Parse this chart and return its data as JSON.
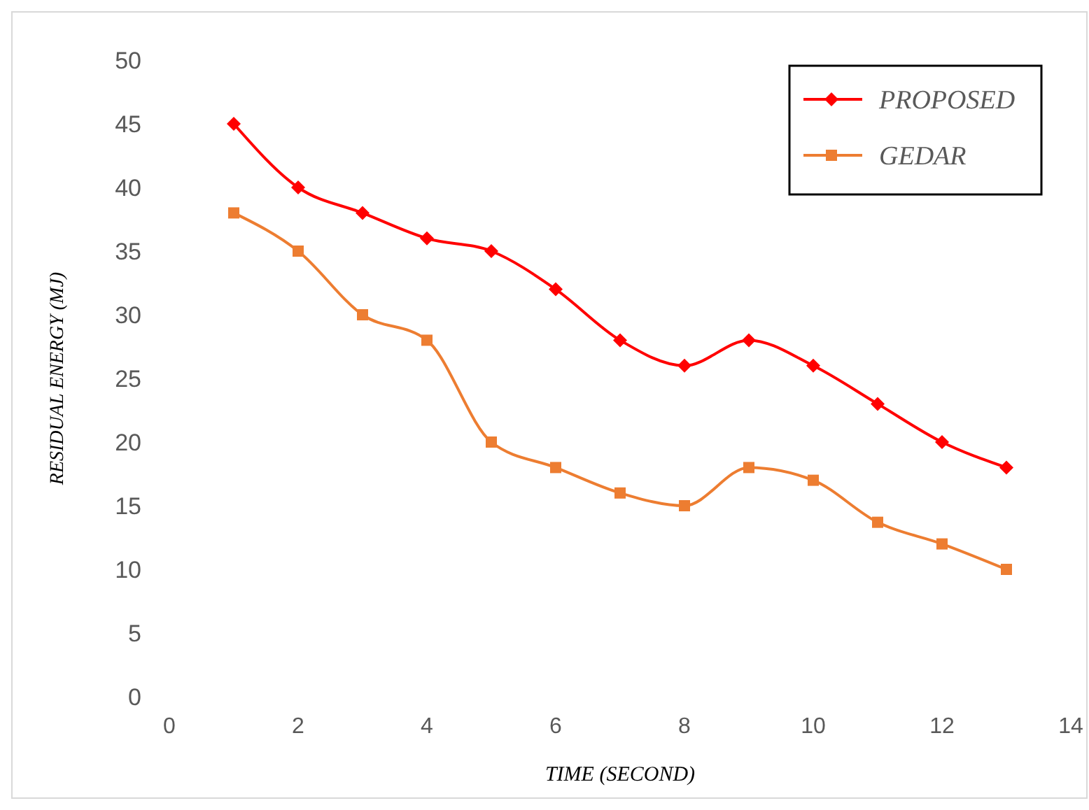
{
  "chart_data": {
    "type": "line",
    "xlabel": "TIME (SECOND)",
    "ylabel": "RESIDUAL ENERGY (MJ)",
    "x": [
      1,
      2,
      3,
      4,
      5,
      6,
      7,
      8,
      9,
      10,
      11,
      12,
      13
    ],
    "series": [
      {
        "name": "PROPOSED",
        "color": "#ff0000",
        "marker": "diamond",
        "values": [
          45,
          40,
          38,
          36,
          35,
          32,
          28,
          26,
          28,
          26,
          23,
          20,
          18
        ]
      },
      {
        "name": "GEDAR",
        "color": "#ed7d31",
        "marker": "square",
        "values": [
          38,
          35,
          30,
          28,
          20,
          18,
          16,
          15,
          18,
          17,
          13.7,
          12,
          10
        ]
      }
    ],
    "xlim": [
      0,
      14
    ],
    "xticks": [
      0,
      2,
      4,
      6,
      8,
      10,
      12,
      14
    ],
    "ylim": [
      0,
      50
    ],
    "yticks": [
      0,
      5,
      10,
      15,
      20,
      25,
      30,
      35,
      40,
      45,
      50
    ],
    "grid": false,
    "legend": "top right",
    "line_style": "solid"
  }
}
